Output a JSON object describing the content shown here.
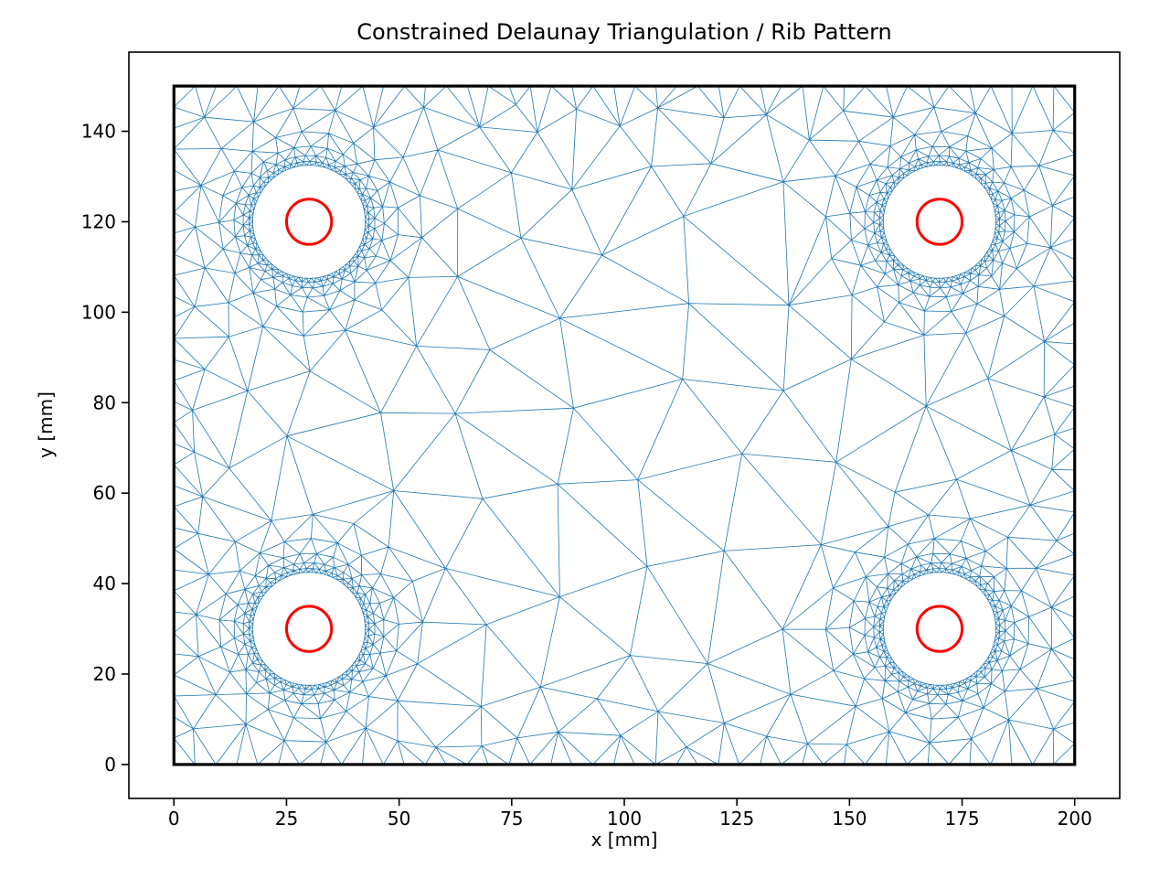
{
  "figure": {
    "background": "#ffffff"
  },
  "chart_data": {
    "type": "mesh",
    "title": "Constrained Delaunay Triangulation / Rib Pattern",
    "xlabel": "x [mm]",
    "ylabel": "y [mm]",
    "xlim": [
      -10,
      210
    ],
    "ylim": [
      -7.5,
      157.5
    ],
    "x_ticks": [
      0,
      25,
      50,
      75,
      100,
      125,
      150,
      175,
      200
    ],
    "y_ticks": [
      0,
      20,
      40,
      60,
      80,
      100,
      120,
      140
    ],
    "grid": false,
    "legend": "none",
    "plate": {
      "x0": 0,
      "y0": 0,
      "x1": 200,
      "y1": 150
    },
    "holes": [
      {
        "cx": 30,
        "cy": 120,
        "hole_r": 12.5,
        "bolt_r": 5
      },
      {
        "cx": 170,
        "cy": 120,
        "hole_r": 12.5,
        "bolt_r": 5
      },
      {
        "cx": 30,
        "cy": 30,
        "hole_r": 12.5,
        "bolt_r": 5
      },
      {
        "cx": 170,
        "cy": 30,
        "hole_r": 12.5,
        "bolt_r": 5
      }
    ],
    "mesh_refinement": {
      "ring_spacings_mm": [
        0.85,
        1.3,
        2.05,
        3.3,
        5.3,
        8.5
      ],
      "interior_spacing_min_mm": 3,
      "interior_spacing_max_mm": 20,
      "edge_spacing_mm": 10
    },
    "styles": {
      "mesh_color": "#1f77b4",
      "mesh_linewidth": 0.8,
      "plate_edge_color": "#000000",
      "plate_edge_width": 3.2,
      "bolt_color": "#ff0000",
      "bolt_linewidth": 3,
      "axes_frame_color": "#000000"
    }
  }
}
